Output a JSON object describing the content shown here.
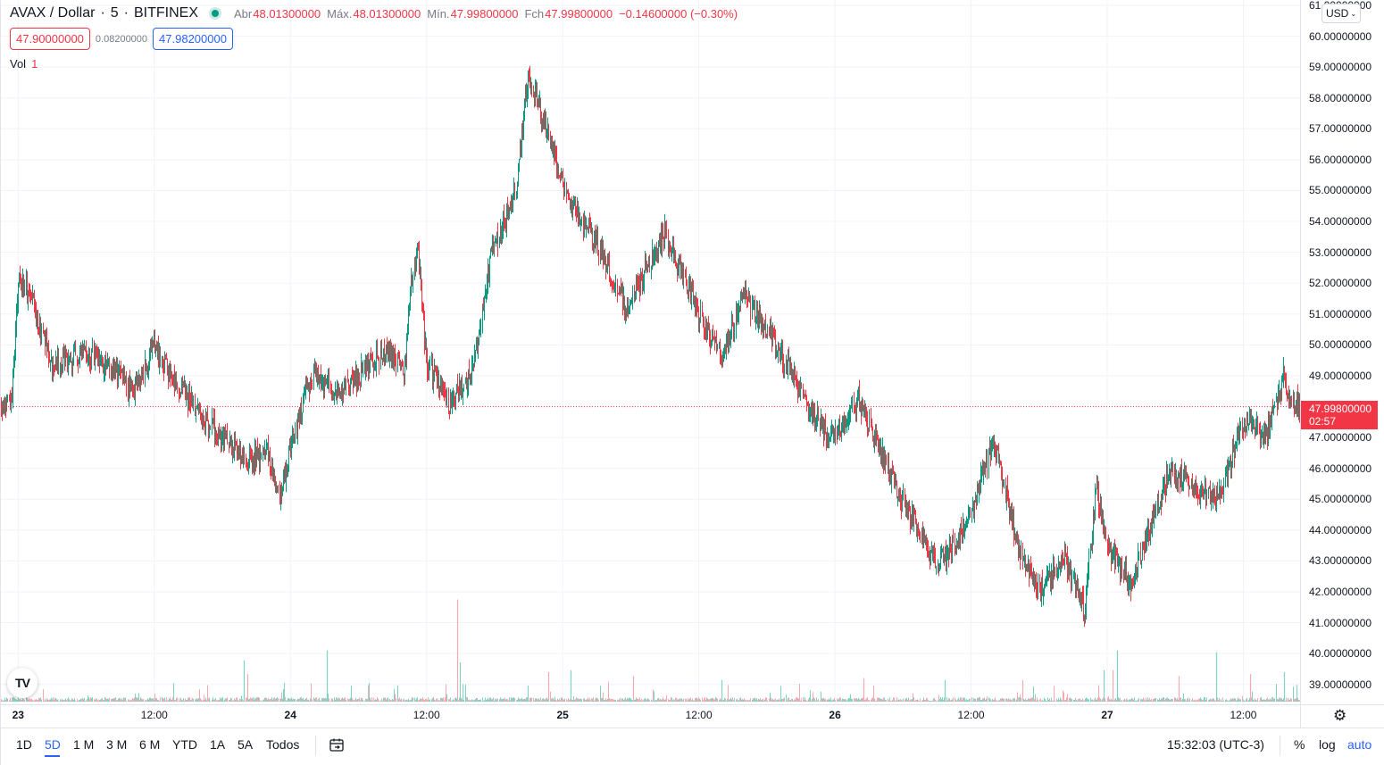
{
  "legend": {
    "symbol": "AVAX / Dollar",
    "interval": "5",
    "exchange": "BITFINEX",
    "open_label": "Abr",
    "open_value": "48.01300000",
    "high_label": "Máx.",
    "high_value": "48.01300000",
    "low_label": "Mín.",
    "low_value": "47.99800000",
    "close_label": "Fch",
    "close_value": "47.99800000",
    "change": "−0.14600000 (−0.30%)",
    "bid": "47.90000000",
    "spread": "0.08200000",
    "ask": "47.98200000",
    "volume_label": "Vol",
    "volume_value": "1"
  },
  "currency": "USD",
  "last_price": {
    "value": "47.99800000",
    "countdown": "02:57"
  },
  "colors": {
    "up": "#089981",
    "down": "#f23645",
    "accent": "#2962ff",
    "grid": "#f0f3fa"
  },
  "chart_data": {
    "type": "candlestick",
    "symbol": "AVAX / Dollar",
    "interval": "5",
    "ylim": [
      38.5,
      61.0
    ],
    "y_ticks": [
      "61.00000000",
      "60.00000000",
      "59.00000000",
      "58.00000000",
      "57.00000000",
      "56.00000000",
      "55.00000000",
      "54.00000000",
      "53.00000000",
      "52.00000000",
      "51.00000000",
      "50.00000000",
      "49.00000000",
      "48.00000000",
      "47.00000000",
      "46.00000000",
      "45.00000000",
      "44.00000000",
      "43.00000000",
      "42.00000000",
      "41.00000000",
      "40.00000000",
      "39.00000000"
    ],
    "x_ticks": [
      {
        "label": "23",
        "day": true
      },
      {
        "label": "12:00",
        "day": false
      },
      {
        "label": "24",
        "day": true
      },
      {
        "label": "12:00",
        "day": false
      },
      {
        "label": "25",
        "day": true
      },
      {
        "label": "12:00",
        "day": false
      },
      {
        "label": "26",
        "day": true
      },
      {
        "label": "12:00",
        "day": false
      },
      {
        "label": "27",
        "day": true
      },
      {
        "label": "12:00",
        "day": false
      }
    ],
    "x_tick_times": [
      7.6,
      19.6,
      31.6,
      43.6,
      55.6,
      67.6,
      79.6,
      91.6,
      103.6,
      115.6
    ],
    "x_range": [
      6.0,
      120.6
    ],
    "price_path_times": [
      6.0,
      7.0,
      7.6,
      8.6,
      10.6,
      12.6,
      14.6,
      16.6,
      17.6,
      19.6,
      20.6,
      23.6,
      27.6,
      29.6,
      30.6,
      31.6,
      33.6,
      35.6,
      37.6,
      39.6,
      41.6,
      42.2,
      42.8,
      43.6,
      45.6,
      47.6,
      49.2,
      51.4,
      52.6,
      55.6,
      56.8,
      58.6,
      61.1,
      64.6,
      67.6,
      69.6,
      71.6,
      73.6,
      75.6,
      78.6,
      79.6,
      81.6,
      83.6,
      85.6,
      88.6,
      90.1,
      91.6,
      93.6,
      95.6,
      97.6,
      99.6,
      101.6,
      102.6,
      103.6,
      105.6,
      107.6,
      109.1,
      111.6,
      113.6,
      115.6,
      117.6,
      119.2,
      119.6,
      120.6
    ],
    "price_path": [
      47.9,
      48.2,
      52.2,
      51.6,
      49.3,
      49.7,
      49.6,
      49.0,
      48.4,
      49.9,
      49.3,
      47.7,
      46.2,
      46.6,
      44.9,
      46.8,
      49.2,
      48.4,
      49.0,
      49.8,
      49.2,
      51.8,
      53.1,
      49.4,
      48.1,
      49.1,
      52.8,
      55.0,
      58.8,
      55.2,
      54.3,
      53.3,
      51.2,
      53.6,
      51.0,
      49.5,
      51.6,
      50.4,
      49.2,
      47.2,
      47.0,
      48.3,
      46.5,
      44.9,
      42.9,
      43.5,
      44.7,
      46.9,
      43.6,
      42.0,
      43.2,
      41.4,
      45.5,
      43.5,
      42.2,
      44.4,
      45.9,
      45.3,
      45.2,
      47.6,
      47.0,
      49.1,
      48.2,
      47.998
    ],
    "volume_spikes": [
      {
        "t": 27.5,
        "v": 21
      },
      {
        "t": 27.8,
        "v": 14
      },
      {
        "t": 34.8,
        "v": 26
      },
      {
        "t": 46.3,
        "v": 52
      },
      {
        "t": 46.5,
        "v": 20
      },
      {
        "t": 54.3,
        "v": 15
      },
      {
        "t": 56.3,
        "v": 16
      },
      {
        "t": 61.8,
        "v": 13
      },
      {
        "t": 69.6,
        "v": 11
      },
      {
        "t": 82.1,
        "v": 12
      },
      {
        "t": 89.3,
        "v": 11
      },
      {
        "t": 96.1,
        "v": 11
      },
      {
        "t": 103.3,
        "v": 16
      },
      {
        "t": 104.1,
        "v": 16
      },
      {
        "t": 104.5,
        "v": 26
      },
      {
        "t": 109.9,
        "v": 13
      },
      {
        "t": 113.2,
        "v": 25
      },
      {
        "t": 116.2,
        "v": 14
      },
      {
        "t": 119.2,
        "v": 15
      }
    ]
  },
  "toolbar": {
    "timeframes": [
      "1D",
      "5D",
      "1 M",
      "3 M",
      "6 M",
      "YTD",
      "1A",
      "5A",
      "Todos"
    ],
    "active_timeframe": "5D",
    "clock": "15:32:03 (UTC-3)",
    "percent": "%",
    "log": "log",
    "auto": "auto"
  }
}
